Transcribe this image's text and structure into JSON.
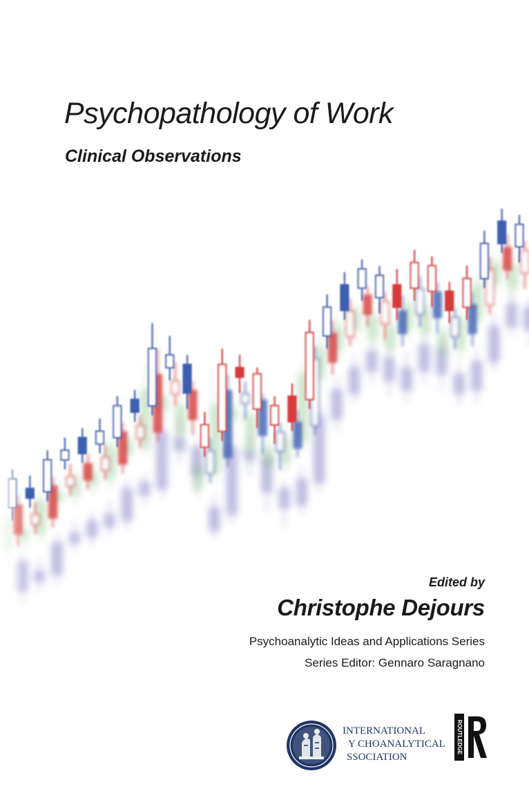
{
  "cover": {
    "title": "Psychopathology of Work",
    "subtitle": "Clinical Observations",
    "edited_by": "Edited by",
    "editor": "Christophe Dejours",
    "series": "Psychoanalytic Ideas and Applications Series",
    "series_editor": "Series Editor: Gennaro Saragnano"
  },
  "publisher": {
    "ipa_line1": "INTERNATIONAL",
    "ipa_line2": "Y    CHOANALYTICAL",
    "ipa_line3": "SSOCIATION",
    "routledge_label": "ROUTLEDGE"
  },
  "colors": {
    "blue_candles": "#3e5fb0",
    "red_candles": "#d63a3a",
    "green_haze": "#8cc48c",
    "violet_haze": "#8a86c8",
    "ipa_navy": "#1f3565"
  },
  "artwork": {
    "front_series": [
      {
        "color": "blue",
        "open": 60,
        "close": 78,
        "high": 84,
        "low": 52
      },
      {
        "color": "blue",
        "open": 66,
        "close": 72,
        "high": 80,
        "low": 60
      },
      {
        "color": "blue",
        "open": 70,
        "close": 90,
        "high": 96,
        "low": 64
      },
      {
        "color": "blue",
        "open": 90,
        "close": 96,
        "high": 104,
        "low": 84
      },
      {
        "color": "blue",
        "open": 94,
        "close": 104,
        "high": 110,
        "low": 88
      },
      {
        "color": "blue",
        "open": 100,
        "close": 108,
        "high": 116,
        "low": 94
      },
      {
        "color": "blue",
        "open": 104,
        "close": 124,
        "high": 130,
        "low": 98
      },
      {
        "color": "blue",
        "open": 120,
        "close": 128,
        "high": 134,
        "low": 114
      },
      {
        "color": "blue",
        "open": 124,
        "close": 160,
        "high": 176,
        "low": 118
      },
      {
        "color": "blue",
        "open": 156,
        "close": 148,
        "high": 168,
        "low": 140
      },
      {
        "color": "blue",
        "open": 150,
        "close": 132,
        "high": 156,
        "low": 122
      },
      {
        "color": "red",
        "open": 98,
        "close": 112,
        "high": 120,
        "low": 92
      },
      {
        "color": "red",
        "open": 108,
        "close": 150,
        "high": 160,
        "low": 102
      },
      {
        "color": "red",
        "open": 148,
        "close": 142,
        "high": 156,
        "low": 132
      },
      {
        "color": "red",
        "open": 144,
        "close": 122,
        "high": 148,
        "low": 110
      },
      {
        "color": "red",
        "open": 124,
        "close": 112,
        "high": 130,
        "low": 100
      },
      {
        "color": "red",
        "open": 114,
        "close": 130,
        "high": 138,
        "low": 108
      },
      {
        "color": "red",
        "open": 128,
        "close": 170,
        "high": 178,
        "low": 122
      },
      {
        "color": "blue",
        "open": 168,
        "close": 186,
        "high": 194,
        "low": 160
      },
      {
        "color": "blue",
        "open": 184,
        "close": 200,
        "high": 208,
        "low": 178
      },
      {
        "color": "blue",
        "open": 198,
        "close": 210,
        "high": 216,
        "low": 190
      },
      {
        "color": "blue",
        "open": 206,
        "close": 192,
        "high": 212,
        "low": 182
      },
      {
        "color": "red",
        "open": 186,
        "close": 200,
        "high": 210,
        "low": 178
      },
      {
        "color": "red",
        "open": 198,
        "close": 214,
        "high": 222,
        "low": 190
      },
      {
        "color": "red",
        "open": 212,
        "close": 196,
        "high": 218,
        "low": 186
      },
      {
        "color": "red",
        "open": 196,
        "close": 184,
        "high": 202,
        "low": 176
      },
      {
        "color": "red",
        "open": 186,
        "close": 204,
        "high": 212,
        "low": 178
      },
      {
        "color": "blue",
        "open": 204,
        "close": 226,
        "high": 234,
        "low": 198
      },
      {
        "color": "blue",
        "open": 226,
        "close": 240,
        "high": 248,
        "low": 220
      },
      {
        "color": "blue",
        "open": 238,
        "close": 224,
        "high": 244,
        "low": 214
      }
    ]
  }
}
